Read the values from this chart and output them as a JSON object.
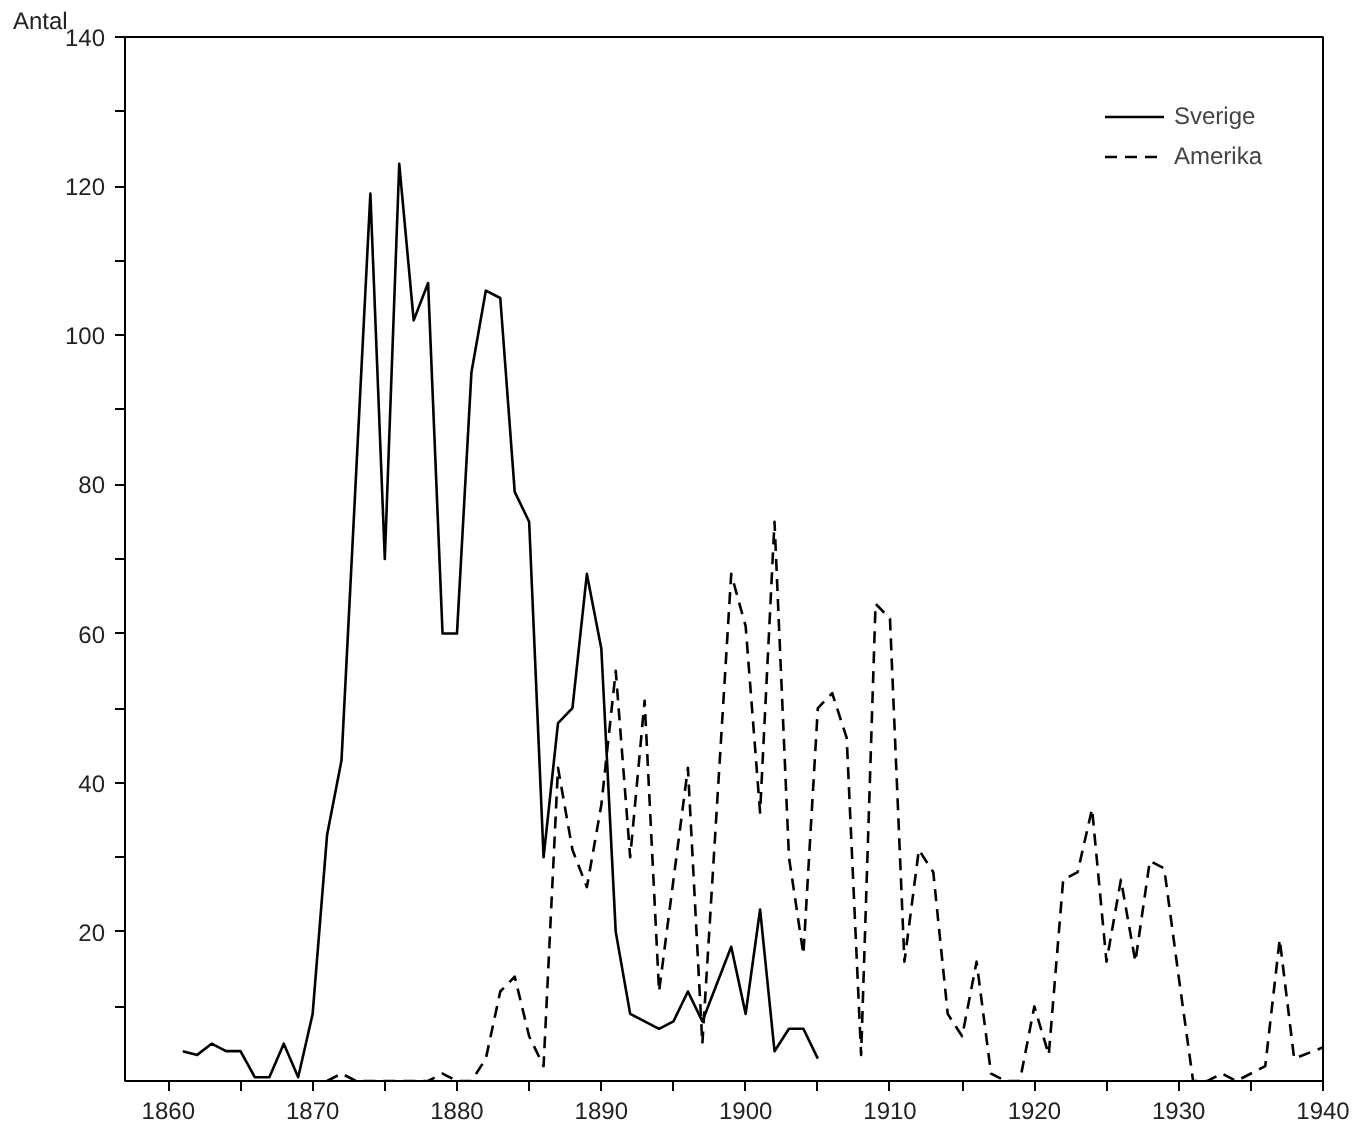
{
  "chart_data": {
    "type": "line",
    "ylabel": "Antal",
    "xlim": [
      1857,
      1940
    ],
    "ylim": [
      0,
      140
    ],
    "xticks": [
      1860,
      {
        "value": 1865,
        "label": null
      },
      1870,
      {
        "value": 1875,
        "label": null
      },
      1880,
      {
        "value": 1885,
        "label": null
      },
      1890,
      {
        "value": 1895,
        "label": null
      },
      1900,
      {
        "value": 1905,
        "label": null
      },
      1910,
      {
        "value": 1915,
        "label": null
      },
      1920,
      {
        "value": 1925,
        "label": null
      },
      1930,
      {
        "value": 1935,
        "label": null
      },
      1940
    ],
    "yticks": [
      {
        "value": 10,
        "label": null
      },
      20,
      {
        "value": 30,
        "label": null
      },
      40,
      {
        "value": 50,
        "label": null
      },
      60,
      {
        "value": 70,
        "label": null
      },
      80,
      {
        "value": 90,
        "label": null
      },
      100,
      {
        "value": 110,
        "label": null
      },
      120,
      {
        "value": 130,
        "label": null
      },
      140
    ],
    "grid": false,
    "legend": "top right",
    "series": [
      {
        "name": "Sverige",
        "color": "#000000",
        "line_style": "solid",
        "x": [
          1861,
          1862,
          1863,
          1864,
          1865,
          1866,
          1867,
          1868,
          1869,
          1870,
          1871,
          1872,
          1874,
          1875,
          1876,
          1877,
          1878,
          1879,
          1880,
          1881,
          1882,
          1883,
          1884,
          1885,
          1886,
          1887,
          1888,
          1889,
          1890,
          1891,
          1892,
          1893,
          1894,
          1895,
          1896,
          1897,
          1898,
          1899,
          1900,
          1901,
          1902,
          1903,
          1904,
          1905
        ],
        "values": [
          4,
          3.5,
          5,
          4,
          4,
          0.5,
          0.5,
          5,
          0.5,
          9,
          33,
          43,
          119,
          70,
          123,
          102,
          107,
          60,
          60,
          95,
          106,
          105,
          79,
          75,
          30,
          48,
          50,
          68,
          58,
          20,
          9,
          8,
          7,
          8,
          12,
          8,
          13,
          18,
          9,
          23,
          4,
          7,
          7,
          3
        ]
      },
      {
        "name": "Amerika",
        "color": "#000000",
        "line_style": "dashed",
        "x": [
          1871,
          1872,
          1873,
          1878,
          1879,
          1880,
          1881,
          1882,
          1883,
          1884,
          1885,
          1886,
          1887,
          1888,
          1889,
          1890,
          1891,
          1892,
          1893,
          1894,
          1896,
          1897,
          1899,
          1900,
          1901,
          1902,
          1903,
          1904,
          1905,
          1906,
          1907,
          1908,
          1909,
          1910,
          1911,
          1912,
          1913,
          1914,
          1915,
          1916,
          1917,
          1918,
          1919,
          1920,
          1921,
          1922,
          1923,
          1924,
          1925,
          1926,
          1927,
          1928,
          1929,
          1930,
          1931,
          1932,
          1933,
          1934,
          1936,
          1937,
          1938,
          1940
        ],
        "values": [
          0,
          1,
          0,
          0,
          1,
          0,
          0,
          3,
          12,
          14,
          6,
          2,
          42,
          31,
          26,
          37,
          55,
          30,
          51,
          12,
          42,
          5,
          68,
          61,
          36,
          75,
          30,
          17,
          50,
          52,
          46,
          3.5,
          64,
          62,
          16,
          31,
          28,
          9,
          6,
          16,
          1,
          0,
          0,
          10,
          3.5,
          27,
          28,
          36.5,
          16,
          27,
          16,
          29.5,
          28.5,
          14,
          0,
          0,
          1,
          0,
          2,
          19,
          3,
          4.5
        ]
      }
    ]
  }
}
